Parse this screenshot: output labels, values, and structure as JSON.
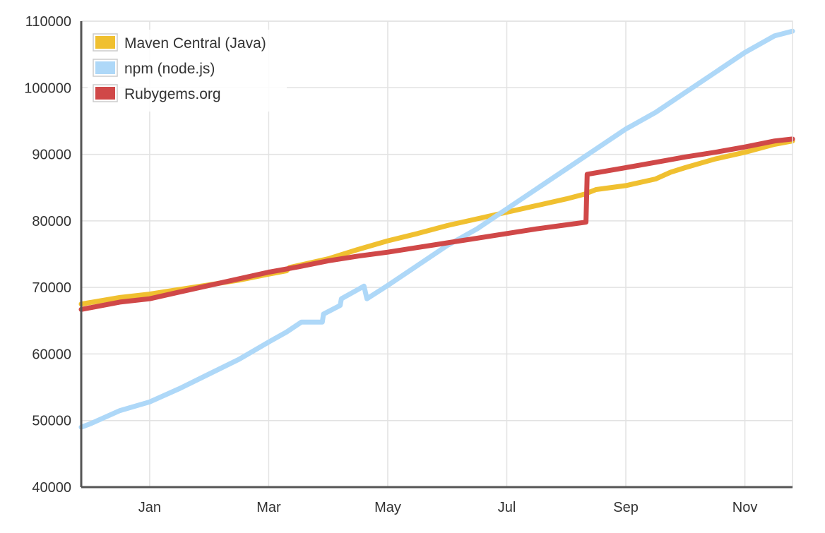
{
  "chart_data": {
    "type": "line",
    "title": "",
    "xlabel": "",
    "ylabel": "",
    "ylim": [
      40000,
      110000
    ],
    "y_ticks": [
      40000,
      50000,
      60000,
      70000,
      80000,
      90000,
      100000,
      110000
    ],
    "x_ticks": [
      {
        "label": "Jan",
        "value": 1.0
      },
      {
        "label": "Mar",
        "value": 3.0
      },
      {
        "label": "May",
        "value": 5.0
      },
      {
        "label": "Jul",
        "value": 7.0
      },
      {
        "label": "Sep",
        "value": 9.0
      },
      {
        "label": "Nov",
        "value": 11.0
      }
    ],
    "xlim": [
      -0.15,
      11.8
    ],
    "grid": true,
    "legend_position": "top-left",
    "series": [
      {
        "name": "Maven Central (Java)",
        "color": "#f0c030",
        "points": [
          [
            -0.15,
            67500
          ],
          [
            0.5,
            68500
          ],
          [
            1.0,
            69000
          ],
          [
            1.5,
            69700
          ],
          [
            2.0,
            70400
          ],
          [
            2.5,
            71100
          ],
          [
            3.0,
            72000
          ],
          [
            3.3,
            72500
          ],
          [
            3.35,
            73000
          ],
          [
            4.0,
            74300
          ],
          [
            4.5,
            75700
          ],
          [
            5.0,
            77000
          ],
          [
            5.5,
            78100
          ],
          [
            6.0,
            79300
          ],
          [
            6.5,
            80300
          ],
          [
            7.0,
            81300
          ],
          [
            7.5,
            82300
          ],
          [
            8.0,
            83300
          ],
          [
            8.3,
            84000
          ],
          [
            8.5,
            84700
          ],
          [
            9.0,
            85300
          ],
          [
            9.5,
            86300
          ],
          [
            9.75,
            87300
          ],
          [
            10.0,
            88000
          ],
          [
            10.5,
            89300
          ],
          [
            11.0,
            90300
          ],
          [
            11.5,
            91500
          ],
          [
            11.8,
            92000
          ]
        ]
      },
      {
        "name": "npm (node.js)",
        "color": "#aed8f8",
        "points": [
          [
            -0.15,
            49000
          ],
          [
            0.0,
            49500
          ],
          [
            0.5,
            51500
          ],
          [
            1.0,
            52800
          ],
          [
            1.5,
            54800
          ],
          [
            2.0,
            57000
          ],
          [
            2.5,
            59200
          ],
          [
            3.0,
            61800
          ],
          [
            3.3,
            63300
          ],
          [
            3.55,
            64800
          ],
          [
            3.9,
            64800
          ],
          [
            3.92,
            66000
          ],
          [
            4.2,
            67300
          ],
          [
            4.22,
            68300
          ],
          [
            4.6,
            70200
          ],
          [
            4.65,
            68300
          ],
          [
            5.0,
            70300
          ],
          [
            5.5,
            73300
          ],
          [
            6.0,
            76300
          ],
          [
            6.5,
            78800
          ],
          [
            7.0,
            81800
          ],
          [
            7.5,
            84800
          ],
          [
            8.0,
            87800
          ],
          [
            8.5,
            90800
          ],
          [
            9.0,
            93800
          ],
          [
            9.5,
            96300
          ],
          [
            10.0,
            99300
          ],
          [
            10.5,
            102300
          ],
          [
            11.0,
            105300
          ],
          [
            11.5,
            107800
          ],
          [
            11.8,
            108500
          ]
        ]
      },
      {
        "name": "Rubygems.org",
        "color": "#d04848",
        "points": [
          [
            -0.15,
            66700
          ],
          [
            0.5,
            67800
          ],
          [
            1.0,
            68300
          ],
          [
            1.5,
            69300
          ],
          [
            2.0,
            70300
          ],
          [
            2.5,
            71300
          ],
          [
            3.0,
            72300
          ],
          [
            3.5,
            73100
          ],
          [
            4.0,
            74000
          ],
          [
            4.5,
            74700
          ],
          [
            5.0,
            75300
          ],
          [
            5.5,
            76000
          ],
          [
            6.0,
            76700
          ],
          [
            6.5,
            77400
          ],
          [
            7.0,
            78100
          ],
          [
            7.5,
            78800
          ],
          [
            8.0,
            79400
          ],
          [
            8.33,
            79800
          ],
          [
            8.35,
            87000
          ],
          [
            9.0,
            88000
          ],
          [
            9.5,
            88800
          ],
          [
            10.0,
            89600
          ],
          [
            10.5,
            90300
          ],
          [
            11.0,
            91100
          ],
          [
            11.5,
            92000
          ],
          [
            11.8,
            92300
          ]
        ]
      }
    ]
  }
}
